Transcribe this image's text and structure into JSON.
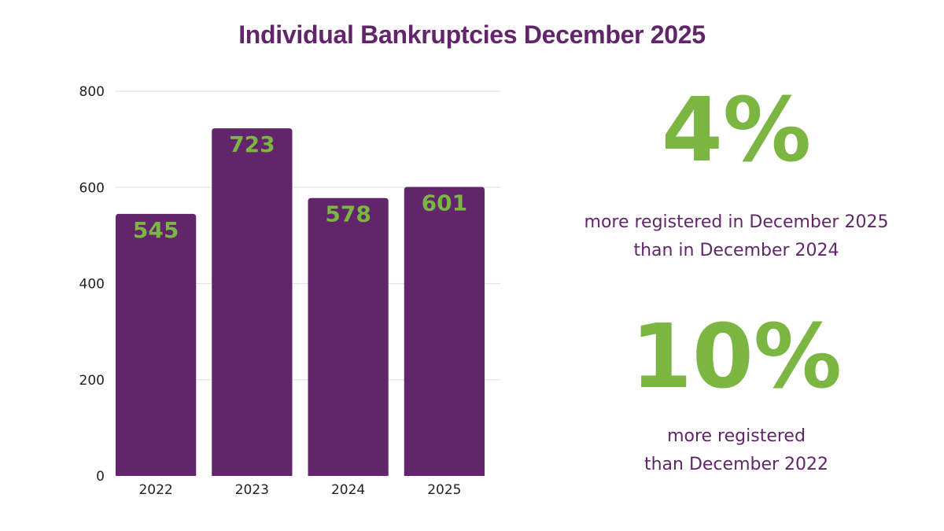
{
  "title": "Individual Bankruptcies December 2025",
  "colors": {
    "title": "#62246a",
    "bar": "#62246a",
    "value_label": "#7ab641",
    "stat_number": "#7ab641",
    "stat_text": "#62246a",
    "grid": "#e2e2e2"
  },
  "chart_data": {
    "type": "bar",
    "categories": [
      "2022",
      "2023",
      "2024",
      "2025"
    ],
    "values": [
      545,
      723,
      578,
      601
    ],
    "data_labels": [
      "545",
      "723",
      "578",
      "601"
    ],
    "y_ticks": [
      0,
      200,
      400,
      600,
      800
    ],
    "y_tick_labels": [
      "0",
      "200",
      "400",
      "600",
      "800"
    ],
    "ylim": [
      0,
      800
    ],
    "grid": true,
    "legend": "none",
    "title": "",
    "xlabel": "",
    "ylabel": ""
  },
  "stats": [
    {
      "number": "4%",
      "lines": [
        "more registered in December 2025",
        "than in December 2024"
      ]
    },
    {
      "number": "10%",
      "lines": [
        "more registered",
        "than December 2022"
      ]
    }
  ]
}
